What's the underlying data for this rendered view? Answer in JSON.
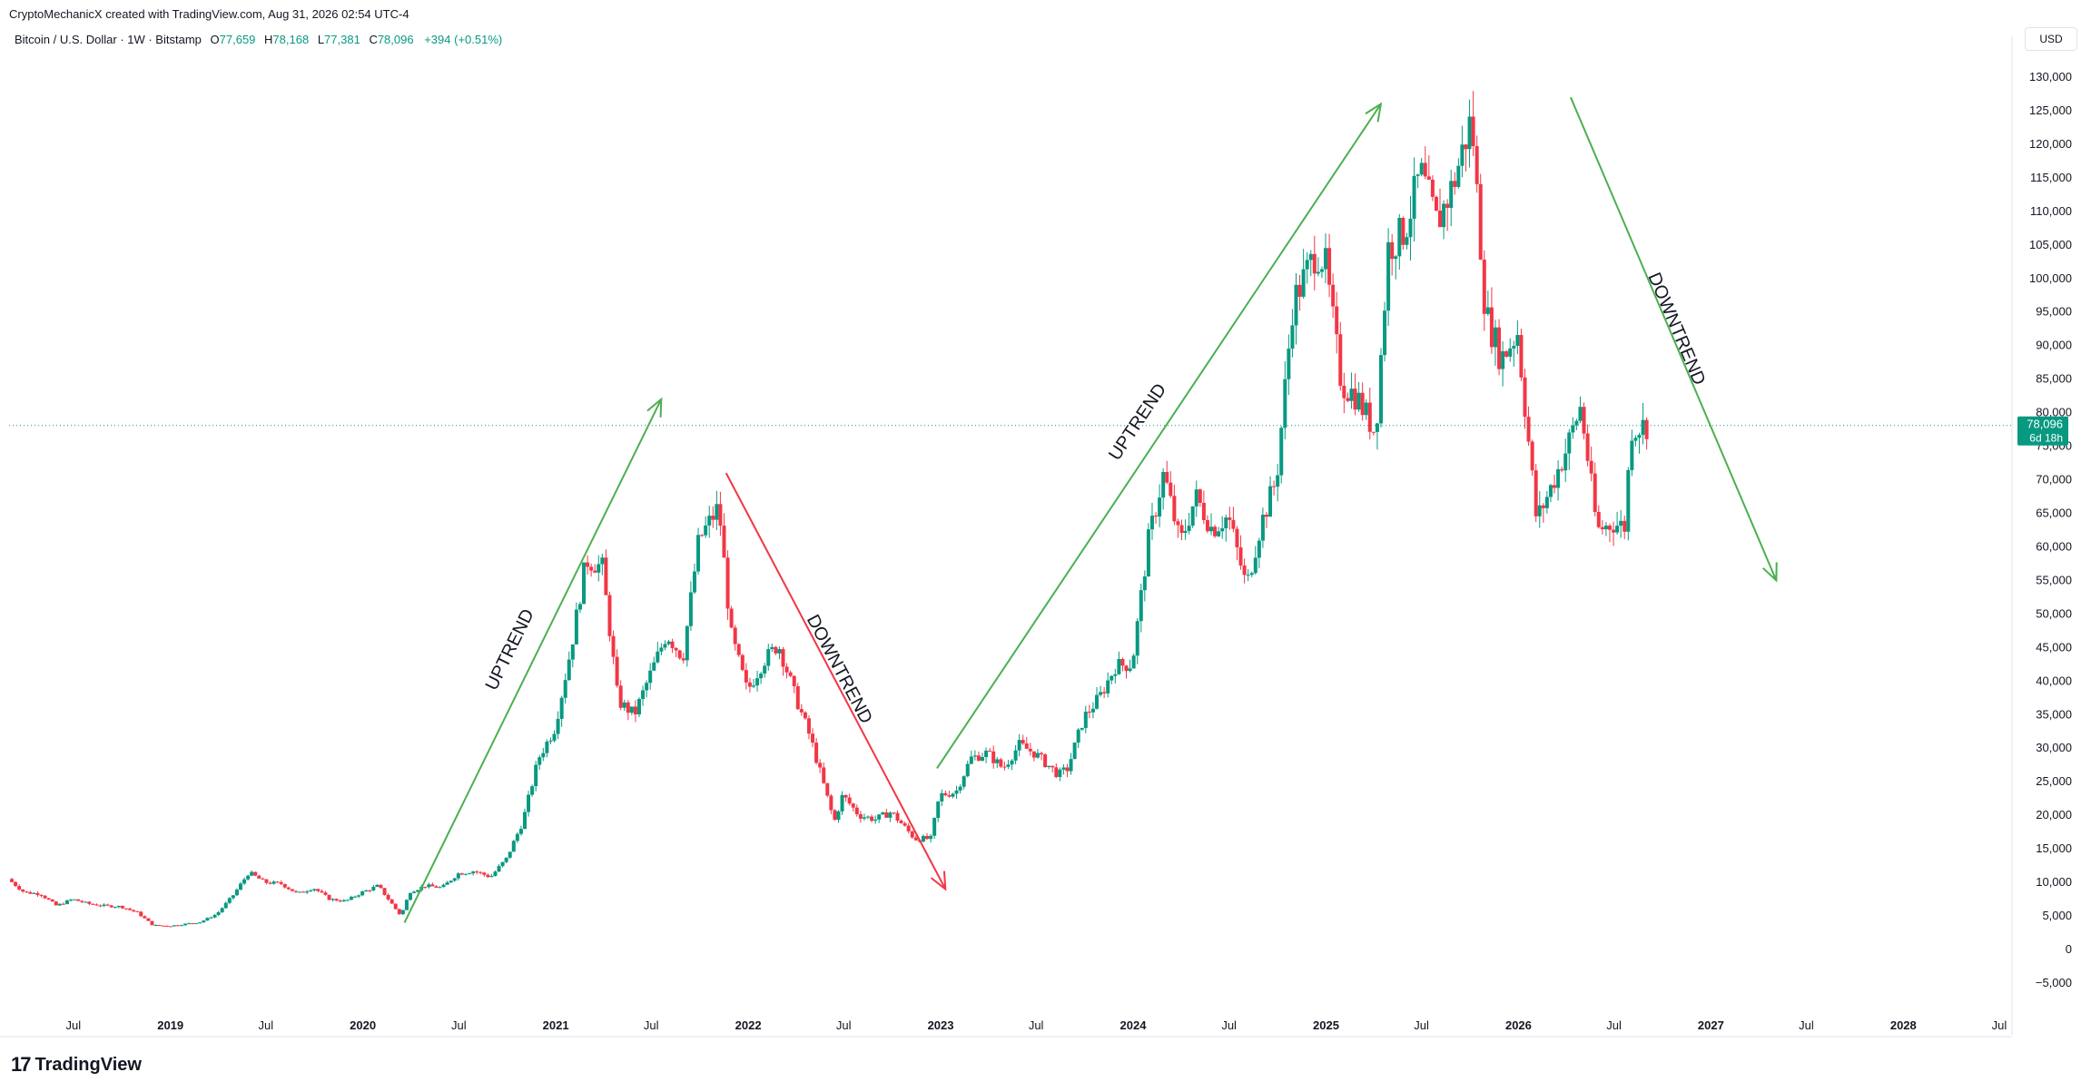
{
  "header": {
    "credit": "CryptoMechanicX created with TradingView.com, Aug 31, 2026 02:54 UTC-4",
    "symbol": "Bitcoin / U.S. Dollar · 1W · Bitstamp",
    "o_label": "O",
    "o_value": "77,659",
    "h_label": "H",
    "h_value": "78,168",
    "l_label": "L",
    "l_value": "77,381",
    "c_label": "C",
    "c_value": "78,096",
    "change": "+394 (+0.51%)"
  },
  "unit": "USD",
  "brand": {
    "name": "TradingView",
    "mark": "17"
  },
  "price_tag": {
    "price": "78,096",
    "countdown": "6d 18h"
  },
  "colors": {
    "up": "#089981",
    "down": "#f23645",
    "arrow_up": "#4caf50",
    "arrow_down": "#f23645",
    "arrow_green": "#4caf50"
  },
  "chart_data": {
    "type": "candlestick",
    "interval": "1W",
    "ylim": [
      -8000,
      132000
    ],
    "y_ticks": [
      -5000,
      0,
      5000,
      10000,
      15000,
      20000,
      25000,
      30000,
      35000,
      40000,
      45000,
      50000,
      55000,
      60000,
      65000,
      70000,
      75000,
      80000,
      85000,
      90000,
      95000,
      100000,
      105000,
      110000,
      115000,
      120000,
      125000,
      130000
    ],
    "y_tick_labels": [
      "−5,000",
      "0",
      "5,000",
      "10,000",
      "15,000",
      "20,000",
      "25,000",
      "30,000",
      "35,000",
      "40,000",
      "45,000",
      "50,000",
      "55,000",
      "60,000",
      "65,000",
      "70,000",
      "75,000",
      "80,000",
      "85,000",
      "90,000",
      "95,000",
      "100,000",
      "105,000",
      "110,000",
      "115,000",
      "120,000",
      "125,000",
      "130,000"
    ],
    "x_range": [
      "2018-03-01",
      "2028-08-01"
    ],
    "x_ticks": [
      {
        "date": "2018-07-01",
        "label": "Jul",
        "bold": false
      },
      {
        "date": "2019-01-01",
        "label": "2019",
        "bold": true
      },
      {
        "date": "2019-07-01",
        "label": "Jul",
        "bold": false
      },
      {
        "date": "2020-01-01",
        "label": "2020",
        "bold": true
      },
      {
        "date": "2020-07-01",
        "label": "Jul",
        "bold": false
      },
      {
        "date": "2021-01-01",
        "label": "2021",
        "bold": true
      },
      {
        "date": "2021-07-01",
        "label": "Jul",
        "bold": false
      },
      {
        "date": "2022-01-01",
        "label": "2022",
        "bold": true
      },
      {
        "date": "2022-07-01",
        "label": "Jul",
        "bold": false
      },
      {
        "date": "2023-01-01",
        "label": "2023",
        "bold": true
      },
      {
        "date": "2023-07-01",
        "label": "Jul",
        "bold": false
      },
      {
        "date": "2024-01-01",
        "label": "2024",
        "bold": true
      },
      {
        "date": "2024-07-01",
        "label": "Jul",
        "bold": false
      },
      {
        "date": "2025-01-01",
        "label": "2025",
        "bold": true
      },
      {
        "date": "2025-07-01",
        "label": "Jul",
        "bold": false
      },
      {
        "date": "2026-01-01",
        "label": "2026",
        "bold": true
      },
      {
        "date": "2026-07-01",
        "label": "Jul",
        "bold": false
      },
      {
        "date": "2027-01-01",
        "label": "2027",
        "bold": true
      },
      {
        "date": "2027-07-01",
        "label": "Jul",
        "bold": false
      },
      {
        "date": "2028-01-01",
        "label": "2028",
        "bold": true
      },
      {
        "date": "2028-07-01",
        "label": "Jul",
        "bold": false
      }
    ],
    "current_price": 78096,
    "price_path": [
      [
        "2018-03-01",
        10500
      ],
      [
        "2018-04-01",
        8500
      ],
      [
        "2018-05-01",
        8300
      ],
      [
        "2018-06-01",
        6500
      ],
      [
        "2018-07-01",
        7500
      ],
      [
        "2018-08-01",
        6800
      ],
      [
        "2018-09-01",
        6500
      ],
      [
        "2018-10-01",
        6400
      ],
      [
        "2018-11-01",
        5500
      ],
      [
        "2018-12-01",
        3600
      ],
      [
        "2019-01-01",
        3500
      ],
      [
        "2019-02-01",
        3800
      ],
      [
        "2019-03-01",
        4100
      ],
      [
        "2019-04-01",
        5300
      ],
      [
        "2019-05-01",
        8000
      ],
      [
        "2019-06-01",
        11500
      ],
      [
        "2019-07-01",
        10000
      ],
      [
        "2019-08-01",
        9800
      ],
      [
        "2019-09-01",
        8300
      ],
      [
        "2019-10-01",
        9200
      ],
      [
        "2019-11-01",
        7500
      ],
      [
        "2019-12-01",
        7200
      ],
      [
        "2020-01-01",
        8500
      ],
      [
        "2020-02-01",
        9500
      ],
      [
        "2020-03-15",
        5000
      ],
      [
        "2020-04-01",
        8600
      ],
      [
        "2020-05-01",
        9500
      ],
      [
        "2020-06-01",
        9200
      ],
      [
        "2020-07-01",
        11300
      ],
      [
        "2020-08-01",
        11700
      ],
      [
        "2020-09-01",
        10800
      ],
      [
        "2020-10-01",
        13500
      ],
      [
        "2020-11-01",
        19000
      ],
      [
        "2020-12-01",
        28500
      ],
      [
        "2021-01-01",
        33000
      ],
      [
        "2021-02-01",
        45000
      ],
      [
        "2021-03-01",
        58000
      ],
      [
        "2021-04-01",
        57000
      ],
      [
        "2021-05-01",
        37000
      ],
      [
        "2021-06-01",
        35000
      ],
      [
        "2021-07-01",
        41000
      ],
      [
        "2021-08-01",
        47000
      ],
      [
        "2021-09-01",
        43500
      ],
      [
        "2021-10-01",
        61000
      ],
      [
        "2021-11-08",
        66000
      ],
      [
        "2021-12-01",
        47000
      ],
      [
        "2022-01-01",
        38500
      ],
      [
        "2022-02-01",
        43000
      ],
      [
        "2022-03-01",
        45500
      ],
      [
        "2022-04-01",
        38000
      ],
      [
        "2022-05-01",
        31500
      ],
      [
        "2022-06-15",
        19000
      ],
      [
        "2022-07-01",
        23000
      ],
      [
        "2022-08-01",
        20000
      ],
      [
        "2022-09-01",
        19400
      ],
      [
        "2022-10-01",
        20500
      ],
      [
        "2022-11-15",
        16500
      ],
      [
        "2022-12-15",
        16500
      ],
      [
        "2023-01-01",
        23000
      ],
      [
        "2023-02-01",
        23500
      ],
      [
        "2023-03-01",
        28500
      ],
      [
        "2023-04-01",
        29300
      ],
      [
        "2023-05-01",
        27000
      ],
      [
        "2023-06-01",
        30500
      ],
      [
        "2023-07-01",
        29200
      ],
      [
        "2023-08-15",
        26000
      ],
      [
        "2023-09-01",
        27000
      ],
      [
        "2023-10-01",
        34500
      ],
      [
        "2023-11-01",
        37700
      ],
      [
        "2023-12-01",
        42300
      ],
      [
        "2024-01-01",
        42500
      ],
      [
        "2024-02-01",
        61000
      ],
      [
        "2024-03-01",
        71000
      ],
      [
        "2024-04-01",
        60500
      ],
      [
        "2024-05-01",
        67500
      ],
      [
        "2024-06-01",
        62600
      ],
      [
        "2024-07-01",
        64600
      ],
      [
        "2024-08-05",
        54000
      ],
      [
        "2024-09-01",
        63300
      ],
      [
        "2024-10-01",
        70200
      ],
      [
        "2024-11-01",
        96400
      ],
      [
        "2024-12-15",
        104000
      ],
      [
        "2025-01-01",
        102400
      ],
      [
        "2025-02-01",
        84300
      ],
      [
        "2025-03-01",
        82500
      ],
      [
        "2025-04-07",
        77000
      ],
      [
        "2025-05-01",
        104600
      ],
      [
        "2025-06-01",
        107100
      ],
      [
        "2025-07-01",
        115700
      ],
      [
        "2025-08-01",
        108200
      ],
      [
        "2025-09-01",
        114000
      ],
      [
        "2025-10-06",
        124000
      ],
      [
        "2025-11-01",
        95000
      ],
      [
        "2025-12-01",
        88000
      ],
      [
        "2026-01-01",
        92000
      ],
      [
        "2026-02-06",
        64000
      ],
      [
        "2026-03-01",
        68000
      ],
      [
        "2026-04-01",
        74000
      ],
      [
        "2026-05-01",
        81000
      ],
      [
        "2026-06-01",
        62500
      ],
      [
        "2026-07-01",
        63500
      ],
      [
        "2026-07-25",
        63000
      ],
      [
        "2026-08-03",
        77500
      ],
      [
        "2026-08-31",
        78096
      ]
    ],
    "annotations": [
      {
        "text": "UPTREND",
        "from": [
          "2020-03-20",
          4000
        ],
        "to": [
          "2021-07-20",
          82000
        ],
        "color": "#4caf50"
      },
      {
        "text": "DOWNTREND",
        "from": [
          "2021-11-20",
          71000
        ],
        "to": [
          "2023-01-10",
          9000
        ],
        "color": "#f23645"
      },
      {
        "text": "UPTREND",
        "from": [
          "2022-12-25",
          27000
        ],
        "to": [
          "2025-04-15",
          126000
        ],
        "color": "#4caf50"
      },
      {
        "text": "DOWNTREND",
        "from": [
          "2026-04-10",
          127000
        ],
        "to": [
          "2027-05-05",
          55000
        ],
        "color": "#4caf50"
      }
    ]
  }
}
